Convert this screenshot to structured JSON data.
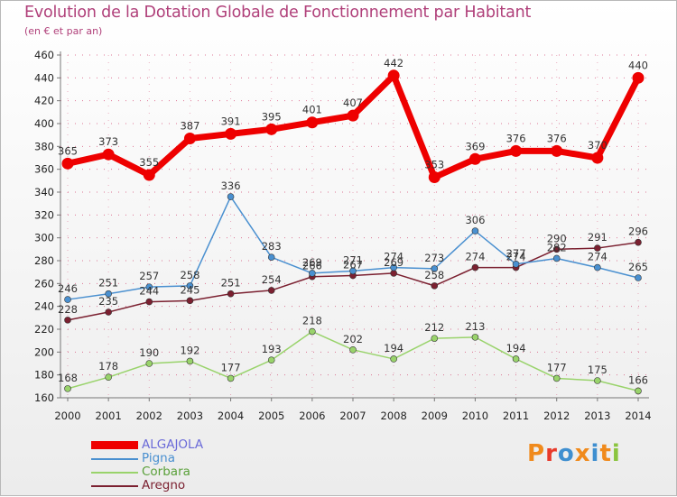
{
  "title": "Evolution de la Dotation Globale de Fonctionnement par Habitant",
  "subtitle": "(en € et par an)",
  "logo": {
    "text": "Proxiti",
    "letter_colors": [
      "#f08a1c",
      "#e83a2a",
      "#3f8fd0",
      "#f08a1c",
      "#3f8fd0",
      "#f08a1c",
      "#8bc53f"
    ]
  },
  "colors": {
    "title": "#b0407a",
    "axis": "#777777",
    "grid_dots": "#cc2255"
  },
  "chart_data": {
    "type": "line",
    "x": [
      "2000",
      "2001",
      "2002",
      "2003",
      "2004",
      "2005",
      "2006",
      "2007",
      "2008",
      "2009",
      "2010",
      "2011",
      "2012",
      "2013",
      "2014"
    ],
    "ylim": [
      160,
      460
    ],
    "yticks": [
      160,
      180,
      200,
      220,
      240,
      260,
      280,
      300,
      320,
      340,
      360,
      380,
      400,
      420,
      440,
      460
    ],
    "series": [
      {
        "name": "ALGAJOLA",
        "color": "#ee0000",
        "values": [
          365,
          373,
          355,
          387,
          391,
          395,
          401,
          407,
          442,
          353,
          369,
          376,
          376,
          370,
          440
        ]
      },
      {
        "name": "Pigna",
        "color": "#4a90d0",
        "values": [
          246,
          251,
          257,
          258,
          336,
          283,
          269,
          271,
          274,
          273,
          306,
          277,
          282,
          274,
          265
        ]
      },
      {
        "name": "Corbara",
        "color": "#99d36b",
        "values": [
          168,
          178,
          190,
          192,
          177,
          193,
          218,
          202,
          194,
          212,
          213,
          194,
          177,
          175,
          166
        ]
      },
      {
        "name": "Aregno",
        "color": "#7b2030",
        "values": [
          228,
          235,
          244,
          245,
          251,
          254,
          266,
          267,
          269,
          258,
          274,
          274,
          290,
          291,
          296
        ]
      }
    ]
  }
}
